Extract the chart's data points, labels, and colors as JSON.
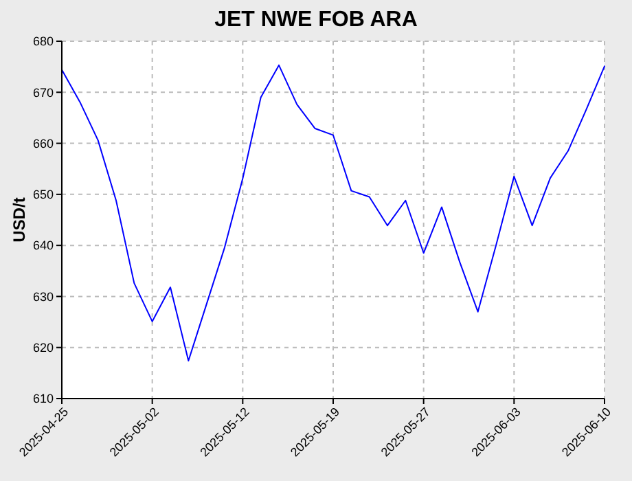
{
  "chart_data": {
    "type": "line",
    "title": "JET NWE FOB ARA",
    "ylabel": "USD/t",
    "categories": [
      "2025-04-25",
      null,
      null,
      null,
      null,
      "2025-05-02",
      null,
      null,
      null,
      null,
      "2025-05-12",
      null,
      null,
      null,
      null,
      "2025-05-19",
      null,
      null,
      null,
      null,
      "2025-05-27",
      null,
      null,
      null,
      null,
      "2025-06-03",
      null,
      null,
      null,
      null,
      "2025-06-10"
    ],
    "values": [
      674.4,
      668.1,
      660.6,
      648.8,
      632.6,
      625.1,
      631.8,
      617.4,
      628.5,
      639.6,
      653.1,
      669.0,
      675.3,
      667.6,
      662.9,
      661.6,
      650.7,
      649.5,
      643.9,
      648.8,
      638.5,
      647.5,
      636.7,
      627.0,
      640.0,
      653.5,
      643.9,
      653.2,
      658.6,
      666.7,
      675.1
    ],
    "color": "#0000ff",
    "ylim": [
      610,
      680
    ],
    "yticks": [
      610,
      620,
      630,
      640,
      650,
      660,
      670,
      680
    ],
    "grid": true,
    "marker": "none",
    "line_style": "solid"
  }
}
